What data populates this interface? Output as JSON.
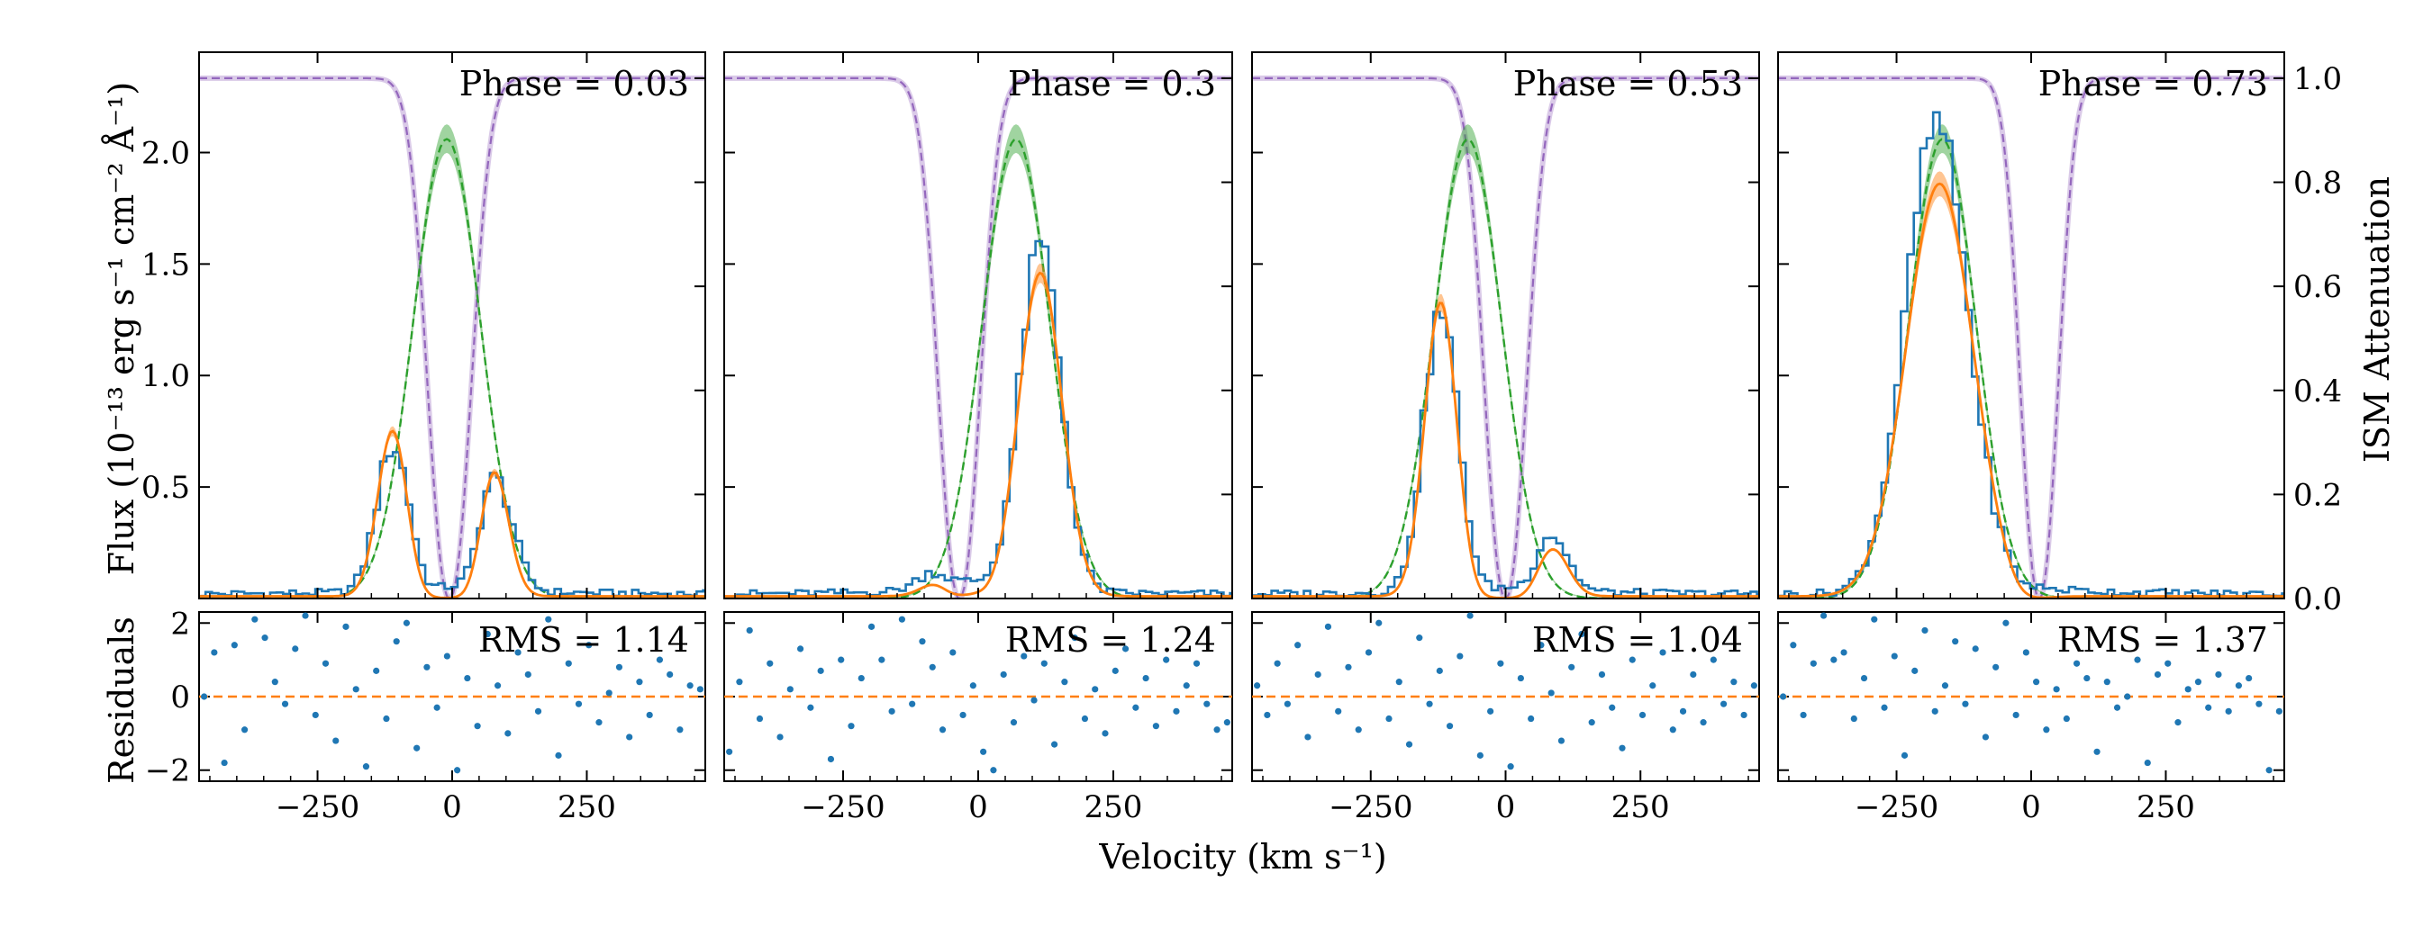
{
  "figure": {
    "xlabel": "Velocity (km s⁻¹)",
    "ylabel_left": "Flux (10⁻¹³ erg s⁻¹ cm⁻² Å⁻¹)",
    "ylabel_right": "ISM Attenuation",
    "residual_ylabel": "Residuals"
  },
  "colors": {
    "data": "#1f77b4",
    "model": "#ff7f0e",
    "intrinsic": "#2ca02c",
    "ism": "#9467bd",
    "zero_line": "#ff7f0e"
  },
  "chart_data": [
    {
      "type": "line",
      "panel": 1,
      "phase_label": "Phase = 0.03",
      "rms_label": "RMS = 1.14",
      "xlim": [
        -470,
        470
      ],
      "ylim": [
        0,
        2.45
      ],
      "ism_ylim": [
        0,
        1.05
      ],
      "resid_ylim": [
        -2.3,
        2.3
      ],
      "xticks": [
        "−250",
        "0",
        "250"
      ],
      "xtick_values": [
        -250,
        0,
        250
      ],
      "yticks": [
        "0.5",
        "1.0",
        "1.5",
        "2.0"
      ],
      "ytick_values": [
        0.5,
        1.0,
        1.5,
        2.0
      ],
      "intrinsic": {
        "center": -10,
        "amp": 2.06,
        "sigma": 62
      },
      "ism": {
        "center": -5,
        "width": 52
      },
      "data_bumps": [
        {
          "center": -110,
          "amp": 0.65,
          "sigma": 30
        },
        {
          "center": 80,
          "amp": 0.5,
          "sigma": 32
        }
      ],
      "model_bumps": [
        {
          "center": -110,
          "amp": 0.75,
          "sigma": 28
        },
        {
          "center": 75,
          "amp": 0.6,
          "sigma": 28
        }
      ],
      "residuals": [
        0.0,
        1.2,
        -1.8,
        1.4,
        -0.9,
        2.1,
        1.6,
        0.4,
        -0.2,
        1.3,
        2.2,
        -0.5,
        0.9,
        -1.2,
        1.9,
        0.2,
        -1.9,
        0.7,
        -0.6,
        1.5,
        2.0,
        -1.4,
        0.8,
        -0.3,
        1.1,
        -2.0,
        0.5,
        -0.8,
        1.7,
        0.3,
        -1.0,
        1.2,
        0.6,
        -0.4,
        2.1,
        -1.6,
        0.9,
        -0.2,
        1.4,
        -0.7,
        0.1,
        0.8,
        -1.1,
        0.4,
        -0.5,
        1.0,
        0.6,
        -0.9,
        0.3,
        0.2
      ]
    },
    {
      "type": "line",
      "panel": 2,
      "phase_label": "Phase = 0.3",
      "rms_label": "RMS = 1.24",
      "xlim": [
        -470,
        470
      ],
      "ylim": [
        0,
        2.45
      ],
      "ism_ylim": [
        0,
        1.05
      ],
      "resid_ylim": [
        -2.3,
        2.3
      ],
      "xticks": [
        "−250",
        "0",
        "250"
      ],
      "xtick_values": [
        -250,
        0,
        250
      ],
      "intrinsic": {
        "center": 70,
        "amp": 2.06,
        "sigma": 62
      },
      "ism": {
        "center": -35,
        "width": 50
      },
      "data_bumps": [
        {
          "center": 115,
          "amp": 1.55,
          "sigma": 38
        },
        {
          "center": -60,
          "amp": 0.12,
          "sigma": 40
        }
      ],
      "model_bumps": [
        {
          "center": 115,
          "amp": 1.45,
          "sigma": 40
        },
        {
          "center": -55,
          "amp": 0.12,
          "sigma": 35
        }
      ],
      "residuals": [
        -1.5,
        0.4,
        1.8,
        -0.6,
        0.9,
        -1.1,
        0.2,
        1.3,
        -0.3,
        0.7,
        -1.7,
        1.0,
        -0.8,
        0.5,
        1.9,
        1.0,
        -0.4,
        2.1,
        -0.2,
        1.5,
        0.8,
        -0.9,
        1.2,
        -0.5,
        0.3,
        -1.5,
        -2.0,
        0.6,
        -0.7,
        1.1,
        -0.1,
        0.9,
        -1.3,
        0.4,
        1.6,
        -0.6,
        0.2,
        -1.0,
        0.7,
        1.3,
        -0.3,
        0.5,
        -0.8,
        1.0,
        -0.4,
        0.3,
        0.9,
        -0.2,
        -0.9,
        -0.7
      ]
    },
    {
      "type": "line",
      "panel": 3,
      "phase_label": "Phase = 0.53",
      "rms_label": "RMS = 1.04",
      "xlim": [
        -470,
        470
      ],
      "ylim": [
        0,
        2.45
      ],
      "ism_ylim": [
        0,
        1.05
      ],
      "resid_ylim": [
        -2.3,
        2.3
      ],
      "xticks": [
        "−250",
        "0",
        "250"
      ],
      "xtick_values": [
        -250,
        0,
        250
      ],
      "intrinsic": {
        "center": -70,
        "amp": 2.06,
        "sigma": 62
      },
      "ism": {
        "center": 0,
        "width": 50
      },
      "data_bumps": [
        {
          "center": -120,
          "amp": 1.25,
          "sigma": 32
        },
        {
          "center": 85,
          "amp": 0.25,
          "sigma": 30
        }
      ],
      "model_bumps": [
        {
          "center": -120,
          "amp": 1.32,
          "sigma": 30
        },
        {
          "center": 85,
          "amp": 0.22,
          "sigma": 30
        }
      ],
      "residuals": [
        0.3,
        -0.5,
        0.9,
        -0.2,
        1.4,
        -1.1,
        0.6,
        1.9,
        -0.4,
        0.8,
        -0.9,
        1.2,
        2.0,
        -0.6,
        0.4,
        -1.3,
        1.6,
        -0.2,
        0.7,
        -0.8,
        1.1,
        2.2,
        -1.6,
        -0.4,
        0.9,
        -1.9,
        0.5,
        -0.6,
        1.4,
        0.1,
        -1.2,
        0.8,
        1.7,
        -0.7,
        0.6,
        -0.3,
        -1.4,
        1.0,
        -0.5,
        0.3,
        1.2,
        -0.9,
        -0.4,
        0.6,
        -0.7,
        1.0,
        -0.2,
        0.4,
        -0.5,
        0.3
      ]
    },
    {
      "type": "line",
      "panel": 4,
      "phase_label": "Phase = 0.73",
      "rms_label": "RMS = 1.37",
      "xlim": [
        -470,
        470
      ],
      "ylim": [
        0,
        2.45
      ],
      "ism_ylim": [
        0,
        1.05
      ],
      "resid_ylim": [
        -2.3,
        2.3
      ],
      "xticks": [
        "−250",
        "0",
        "250"
      ],
      "xtick_values": [
        -250,
        0,
        250
      ],
      "yticks_right": [
        "0.0",
        "0.2",
        "0.4",
        "0.6",
        "0.8",
        "1.0"
      ],
      "ytick_values_right": [
        0.0,
        0.2,
        0.4,
        0.6,
        0.8,
        1.0
      ],
      "intrinsic": {
        "center": -165,
        "amp": 2.06,
        "sigma": 62
      },
      "ism": {
        "center": 15,
        "width": 45
      },
      "data_bumps": [
        {
          "center": -175,
          "amp": 2.1,
          "sigma": 58
        }
      ],
      "model_bumps": [
        {
          "center": -170,
          "amp": 1.85,
          "sigma": 62
        }
      ],
      "residuals": [
        0.0,
        1.4,
        -0.5,
        0.9,
        2.2,
        1.0,
        1.2,
        -0.6,
        0.5,
        2.1,
        -0.3,
        1.1,
        -1.6,
        0.7,
        1.8,
        -0.4,
        0.3,
        1.5,
        -0.2,
        1.3,
        -1.1,
        0.8,
        2.0,
        -0.5,
        1.2,
        0.4,
        -0.9,
        0.2,
        -0.6,
        0.9,
        0.5,
        -1.5,
        0.4,
        -0.3,
        0.0,
        1.0,
        -1.8,
        0.6,
        0.9,
        -0.7,
        0.2,
        0.4,
        -0.3,
        0.6,
        -0.4,
        0.3,
        0.5,
        -0.2,
        -2.0,
        -0.4
      ]
    }
  ]
}
